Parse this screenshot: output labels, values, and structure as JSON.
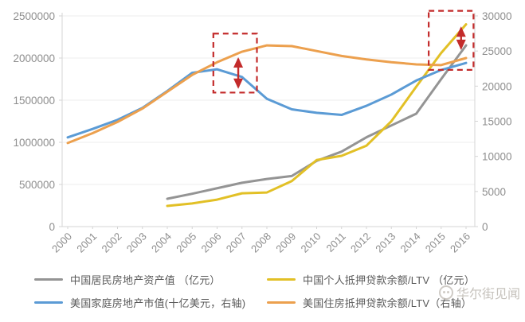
{
  "watermark": {
    "text": "华尔街见闻",
    "logo": "panda-face-icon"
  },
  "chart_data": {
    "type": "line",
    "title": "",
    "xlabel": "",
    "ylabel": "",
    "grid": true,
    "legend_position": "bottom",
    "x": [
      "2000",
      "2001",
      "2002",
      "2003",
      "2004",
      "2005",
      "2006",
      "2007",
      "2008",
      "2009",
      "2010",
      "2011",
      "2012",
      "2013",
      "2014",
      "2015",
      "2016"
    ],
    "left_axis": {
      "min": 0,
      "max": 2500000,
      "ticks": [
        "0",
        "500000",
        "1000000",
        "1500000",
        "2000000",
        "2500000"
      ]
    },
    "right_axis": {
      "min": 0,
      "max": 30000,
      "ticks": [
        "0",
        "5000",
        "10000",
        "15000",
        "20000",
        "25000",
        "30000"
      ]
    },
    "series": [
      {
        "name": "中国居民房地产资产值 （亿元）",
        "color": "#949494",
        "axis": "left",
        "values": [
          null,
          null,
          null,
          null,
          330000,
          390000,
          455000,
          520000,
          565000,
          600000,
          780000,
          890000,
          1060000,
          1200000,
          1340000,
          1750000,
          2150000
        ]
      },
      {
        "name": "中国个人抵押贷款余额/LTV （亿元）",
        "color": "#e2c026",
        "axis": "left",
        "values": [
          null,
          null,
          null,
          null,
          245000,
          275000,
          320000,
          395000,
          405000,
          540000,
          790000,
          840000,
          960000,
          1250000,
          1660000,
          2060000,
          2400000
        ]
      },
      {
        "name": "美国家庭房地产市值(十亿美元，右轴)",
        "color": "#5b9bd5",
        "axis": "right",
        "values": [
          12700,
          13900,
          15200,
          16900,
          19300,
          21900,
          22400,
          21300,
          18200,
          16700,
          16200,
          15900,
          17200,
          18800,
          20800,
          22300,
          23300
        ]
      },
      {
        "name": "美国住房抵押贷款余额/LTV（右轴）",
        "color": "#eca04e",
        "axis": "right",
        "values": [
          11900,
          13300,
          14900,
          16800,
          19200,
          21600,
          23400,
          24900,
          25800,
          25700,
          25000,
          24300,
          23800,
          23400,
          23100,
          23000,
          24000
        ]
      }
    ],
    "annotations": {
      "color": "#c32b2b",
      "boxes": [
        {
          "x_from": 2005.85,
          "x_to": 2007.6,
          "y_from_left": 1590000,
          "y_to_left": 2290000
        },
        {
          "x_from": 2014.5,
          "x_to": 2016.3,
          "y_from_left": 1860000,
          "y_to_left": 2560000
        }
      ],
      "arrows": [
        {
          "x": 2006.85,
          "y_top_left": 2010000,
          "y_bottom_left": 1635000
        },
        {
          "x": 2015.8,
          "y_top_left": 2375000,
          "y_bottom_left": 2095000
        }
      ]
    }
  }
}
